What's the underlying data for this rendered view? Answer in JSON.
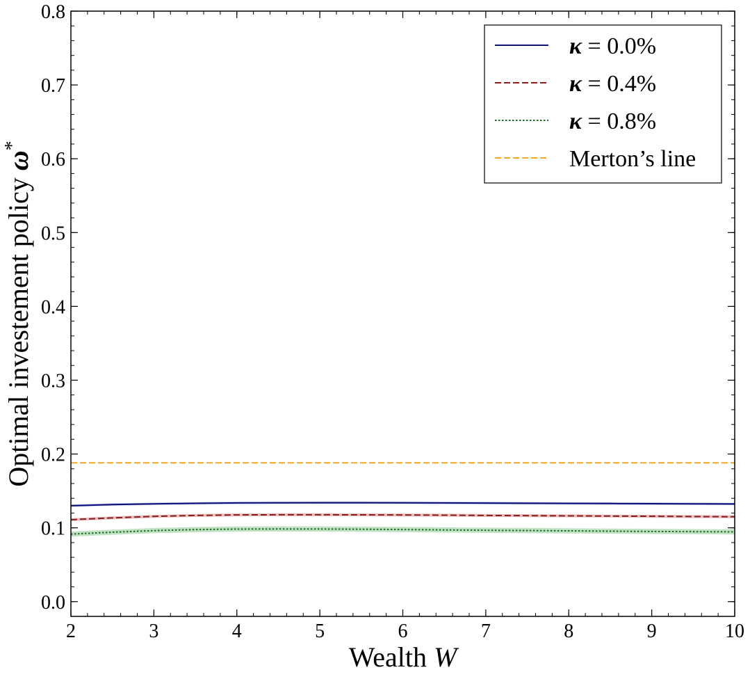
{
  "chart_data": {
    "type": "line",
    "title": "",
    "xlabel": "Wealth W",
    "xlabel_text": "Wealth ",
    "xlabel_var": "W",
    "ylabel": "Optimal investement policy ω*",
    "ylabel_text": "Optimal investement policy ",
    "ylabel_var": "ω",
    "ylabel_sup": "*",
    "xlim": [
      2,
      10
    ],
    "ylim": [
      -0.02,
      0.8
    ],
    "xticks": [
      2,
      3,
      4,
      5,
      6,
      7,
      8,
      9,
      10
    ],
    "xtick_labels": [
      "2",
      "3",
      "4",
      "5",
      "6",
      "7",
      "8",
      "9",
      "10"
    ],
    "yticks": [
      0.0,
      0.1,
      0.2,
      0.3,
      0.4,
      0.5,
      0.6,
      0.7,
      0.8
    ],
    "ytick_labels": [
      "0.0",
      "0.1",
      "0.2",
      "0.3",
      "0.4",
      "0.5",
      "0.6",
      "0.7",
      "0.8"
    ],
    "grid": false,
    "legend_position": "top-right",
    "x": [
      2,
      2.5,
      3,
      3.5,
      4,
      4.5,
      5,
      5.5,
      6,
      6.5,
      7,
      7.5,
      8,
      8.5,
      9,
      9.5,
      10
    ],
    "series": [
      {
        "name": "κ = 0.0%",
        "legend_var": "κ",
        "legend_rest": " = 0.0%",
        "color": "#0d1178",
        "dash": "solid",
        "band": 0.0015,
        "band_color": "#6f73c8",
        "values": [
          0.13,
          0.1315,
          0.1325,
          0.1332,
          0.1337,
          0.1339,
          0.134,
          0.134,
          0.1339,
          0.1337,
          0.1335,
          0.1333,
          0.1331,
          0.1329,
          0.1327,
          0.1325,
          0.1323
        ]
      },
      {
        "name": "κ = 0.4%",
        "legend_var": "κ",
        "legend_rest": " = 0.4%",
        "color": "#8b1a1a",
        "dash": "dashed",
        "band": 0.002,
        "band_color": "#d08a8a",
        "values": [
          0.111,
          0.1135,
          0.1155,
          0.1168,
          0.1175,
          0.1177,
          0.1177,
          0.1176,
          0.1174,
          0.1171,
          0.1168,
          0.1165,
          0.1162,
          0.1159,
          0.1156,
          0.1153,
          0.115
        ]
      },
      {
        "name": "κ = 0.8%",
        "legend_var": "κ",
        "legend_rest": " = 0.8%",
        "color": "#1e6b2a",
        "dash": "dotted",
        "band": 0.0035,
        "band_color": "#8cc98f",
        "values": [
          0.0915,
          0.094,
          0.0962,
          0.0976,
          0.0983,
          0.0985,
          0.0984,
          0.0981,
          0.0977,
          0.0972,
          0.0967,
          0.0963,
          0.0959,
          0.0955,
          0.0951,
          0.0948,
          0.0945
        ]
      },
      {
        "name": "Merton’s line",
        "legend_var": "",
        "legend_rest": "Merton’s line",
        "color": "#f5a623",
        "dash": "dashed",
        "band": 0,
        "band_color": "",
        "values": [
          0.188,
          0.188,
          0.188,
          0.188,
          0.188,
          0.188,
          0.188,
          0.188,
          0.188,
          0.188,
          0.188,
          0.188,
          0.188,
          0.188,
          0.188,
          0.188,
          0.188
        ]
      }
    ]
  }
}
